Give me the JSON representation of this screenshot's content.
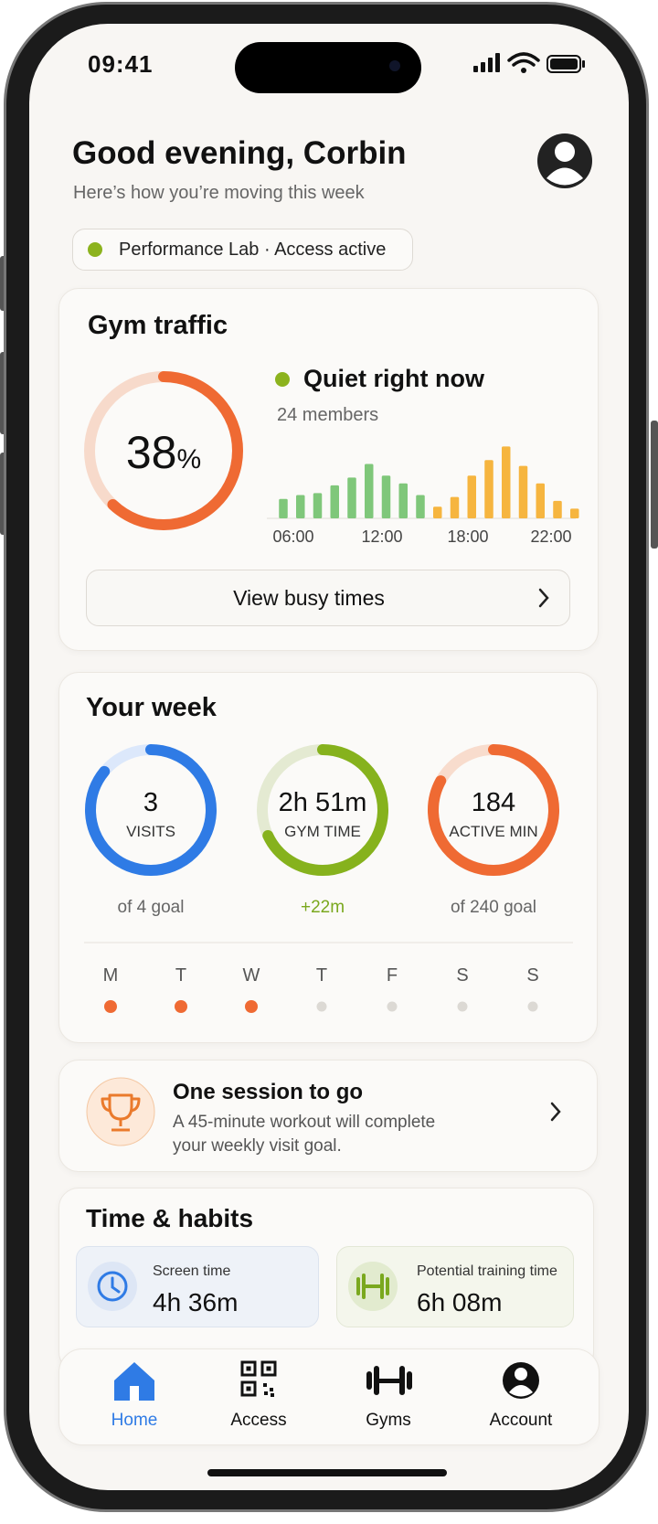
{
  "status": {
    "time": "09:41"
  },
  "header": {
    "greeting": "Good evening, Corbin",
    "subtitle": "Here’s how you’re moving this week"
  },
  "access_pill": {
    "text": "Performance Lab · Access active"
  },
  "traffic": {
    "title": "Gym traffic",
    "percent": 38,
    "percent_unit": "%",
    "status": "Quiet right now",
    "members": "24 members",
    "bars": {
      "ylim": [
        0,
        80
      ],
      "series": [
        {
          "color": "#7fc77a",
          "values": [
            20,
            24,
            26,
            34,
            42,
            56,
            44,
            36,
            24
          ]
        },
        {
          "color": "#f6b53f",
          "values": [
            12,
            22,
            44,
            60,
            74,
            54,
            36,
            18,
            10
          ]
        }
      ],
      "time_labels": [
        "06:00",
        "12:00",
        "18:00",
        "22:00"
      ]
    },
    "button": "View busy times"
  },
  "week": {
    "title": "Your week",
    "rings": [
      {
        "value": 3,
        "label": "VISITS",
        "caption": "of 4 goal"
      },
      {
        "value": "2h 51m",
        "label": "GYM TIME",
        "caption": "+22m"
      },
      {
        "value": 184,
        "label": "ACTIVE MIN",
        "caption": "of 240 goal"
      }
    ],
    "days": [
      {
        "label": "M",
        "done": true
      },
      {
        "label": "T",
        "done": true
      },
      {
        "label": "W",
        "done": true
      },
      {
        "label": "T",
        "done": false
      },
      {
        "label": "F",
        "done": false
      },
      {
        "label": "S",
        "done": false
      },
      {
        "label": "S",
        "done": false
      }
    ]
  },
  "nudge": {
    "title": "One session to go",
    "body": "A 45-minute workout will complete your weekly visit goal."
  },
  "habits": {
    "title": "Time & habits",
    "cards": [
      {
        "label": "Screen time",
        "value": "4h 36m"
      },
      {
        "label": "Potential training time",
        "value": "6h 08m"
      }
    ]
  },
  "nav": {
    "items": [
      "Home",
      "Access",
      "Gyms",
      "Account"
    ],
    "active": 0
  }
}
